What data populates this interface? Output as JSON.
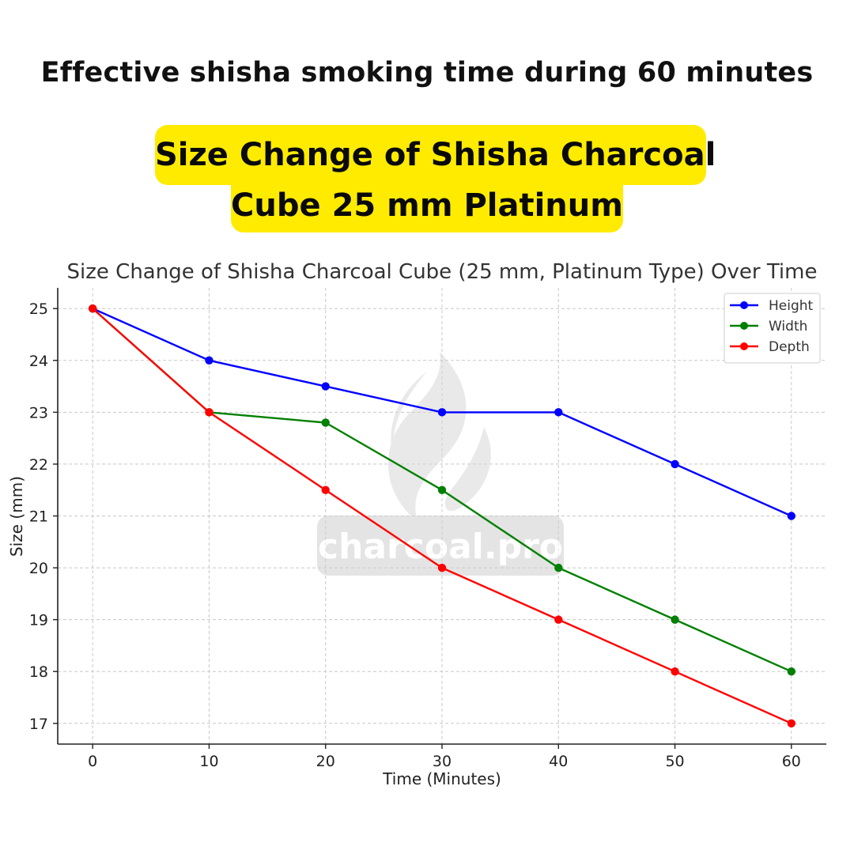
{
  "header": {
    "headline": "Effective shisha smoking time during 60 minutes",
    "banner_line_1": "Size Change of Shisha Charcoal",
    "banner_line_2": "Cube 25 mm Platinum",
    "banner_color": "#FFEB00"
  },
  "watermark": {
    "text": "charcoal.pro",
    "icon": "flame-leaf-icon"
  },
  "chart_data": {
    "type": "line",
    "title": "Size Change of Shisha Charcoal Cube (25 mm, Platinum Type) Over Time",
    "xlabel": "Time (Minutes)",
    "ylabel": "Size (mm)",
    "x": [
      0,
      10,
      20,
      30,
      40,
      50,
      60
    ],
    "xlim": [
      -3,
      63
    ],
    "ylim": [
      16.6,
      25.4
    ],
    "xticks": [
      0,
      10,
      20,
      30,
      40,
      50,
      60
    ],
    "yticks": [
      17,
      18,
      19,
      20,
      21,
      22,
      23,
      24,
      25
    ],
    "grid": true,
    "legend_position": "top-right",
    "series": [
      {
        "name": "Height",
        "color": "#0000ff",
        "values": [
          25,
          24,
          23.5,
          23,
          23,
          22,
          21
        ]
      },
      {
        "name": "Width",
        "color": "#008000",
        "values": [
          25,
          23,
          22.8,
          21.5,
          20,
          19,
          18
        ]
      },
      {
        "name": "Depth",
        "color": "#ff0000",
        "values": [
          25,
          23,
          21.5,
          20,
          19,
          18,
          17
        ]
      }
    ]
  }
}
